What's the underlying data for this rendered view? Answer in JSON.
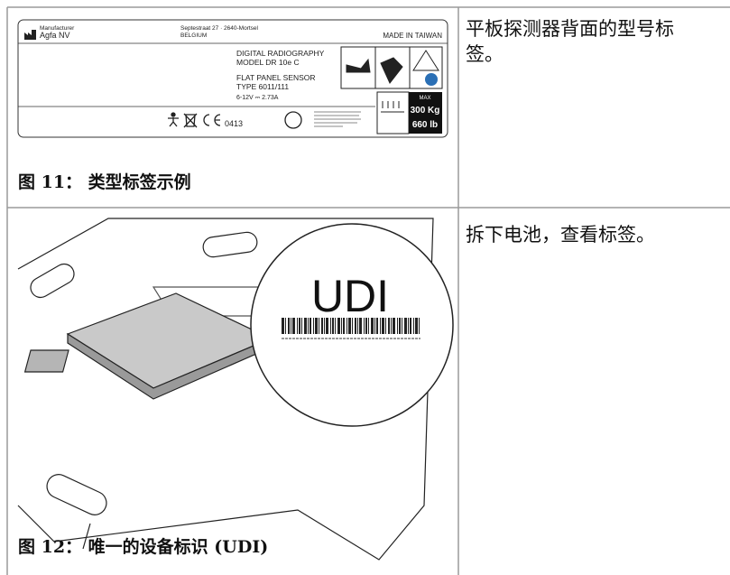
{
  "table": {
    "rows": [
      {
        "figure": {
          "label": {
            "manufacturer_heading": "Manufacturer",
            "manufacturer": "Agfa NV",
            "address": "Septestraat 27 · 2640-Mortsel",
            "country": "BELGIUM",
            "origin": "MADE IN TAIWAN",
            "product": "DIGITAL RADIOGRAPHY",
            "model": "MODEL  DR 10e C",
            "sensor": "FLAT PANEL SENSOR",
            "type": "TYPE  6011/111",
            "power": "6-12V ⎓ 2.73A",
            "notified_body": "0413",
            "load_heading": "MAX",
            "load_kg": "300 Kg",
            "load_lb": "660 lb"
          },
          "caption": "图 11： 类型标签示例"
        },
        "text": "平板探测器背面的型号标签。"
      },
      {
        "figure": {
          "callout": "UDI",
          "caption": "图 12： 唯一的设备标识 (UDI)"
        },
        "text": "拆下电池，查看标签。"
      }
    ]
  }
}
